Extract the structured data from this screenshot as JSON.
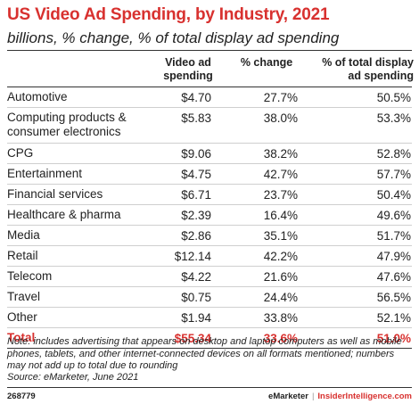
{
  "title": "US Video Ad Spending, by Industry, 2021",
  "subtitle": "billions, % change, % of total display ad spending",
  "columns": [
    "Video ad spending",
    "% change",
    "% of total display ad spending"
  ],
  "chart_data": {
    "type": "table",
    "title": "US Video Ad Spending, by Industry, 2021",
    "subtitle": "billions, % change, % of total display ad spending",
    "columns": [
      "Video ad spending",
      "% change",
      "% of total display ad spending"
    ],
    "rows": [
      {
        "industry": "Automotive",
        "spending": "$4.70",
        "change": "27.7%",
        "share": "50.5%"
      },
      {
        "industry": "Computing products & consumer electronics",
        "spending": "$5.83",
        "change": "38.0%",
        "share": "53.3%"
      },
      {
        "industry": "CPG",
        "spending": "$9.06",
        "change": "38.2%",
        "share": "52.8%"
      },
      {
        "industry": "Entertainment",
        "spending": "$4.75",
        "change": "42.7%",
        "share": "57.7%"
      },
      {
        "industry": "Financial services",
        "spending": "$6.71",
        "change": "23.7%",
        "share": "50.4%"
      },
      {
        "industry": "Healthcare & pharma",
        "spending": "$2.39",
        "change": "16.4%",
        "share": "49.6%"
      },
      {
        "industry": "Media",
        "spending": "$2.86",
        "change": "35.1%",
        "share": "51.7%"
      },
      {
        "industry": "Retail",
        "spending": "$12.14",
        "change": "42.2%",
        "share": "47.9%"
      },
      {
        "industry": "Telecom",
        "spending": "$4.22",
        "change": "21.6%",
        "share": "47.6%"
      },
      {
        "industry": "Travel",
        "spending": "$0.75",
        "change": "24.4%",
        "share": "56.5%"
      },
      {
        "industry": "Other",
        "spending": "$1.94",
        "change": "33.8%",
        "share": "52.1%"
      }
    ],
    "total": {
      "industry": "Total",
      "spending": "$55.34",
      "change": "33.6%",
      "share": "51.0%"
    }
  },
  "note": "Note: includes advertising that appears on desktop and laptop computers as well as mobile phones, tablets, and other internet-connected devices on all formats mentioned; numbers may not add up to total due to rounding",
  "source": "Source: eMarketer, June 2021",
  "footer": {
    "chart_id": "268779",
    "brand1": "eMarketer",
    "separator": "|",
    "brand2": "InsiderIntelligence.com"
  },
  "colors": {
    "accent": "#d8312f",
    "text": "#222222",
    "divider": "#cfcfcf"
  }
}
